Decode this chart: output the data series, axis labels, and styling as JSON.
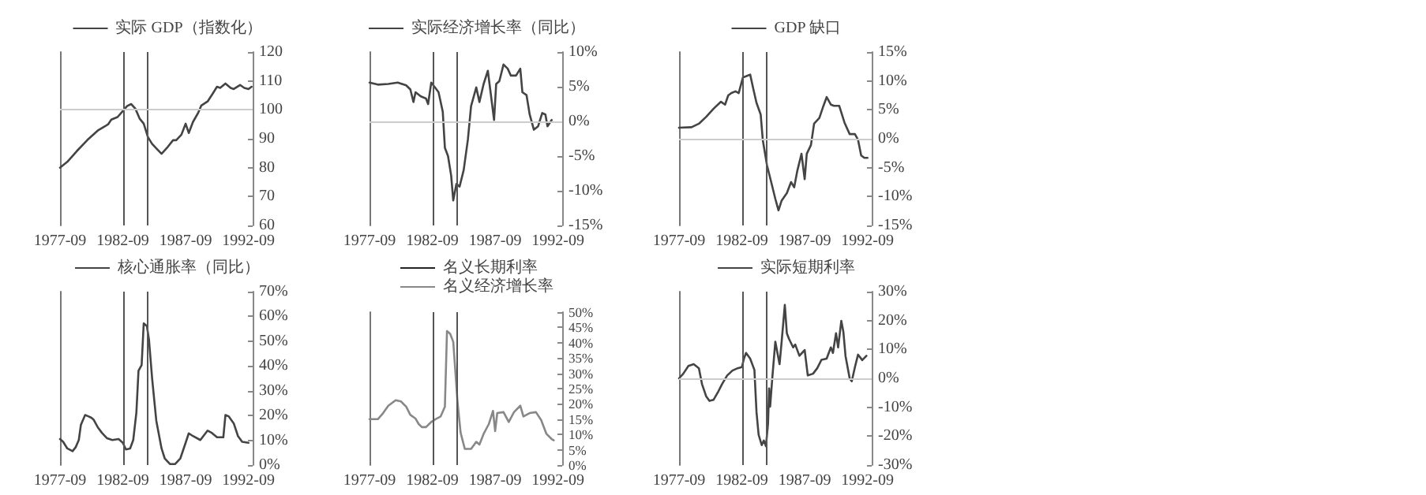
{
  "chart_data": [
    {
      "type": "line",
      "legend": "top",
      "xlim": [
        "1977-09",
        "1993-01"
      ],
      "xticks": [
        "1977-09",
        "1982-09",
        "1987-09",
        "1992-09"
      ],
      "ylim": [
        60,
        120
      ],
      "yticks": [
        60,
        70,
        80,
        90,
        100,
        110,
        120
      ],
      "ref_lines": [
        {
          "axis": "x",
          "value": "1982-09",
          "color": "#555555"
        },
        {
          "axis": "x",
          "value": "1984-09",
          "color": "#555555"
        },
        {
          "axis": "y",
          "value": 100,
          "color": "#cccccc"
        }
      ],
      "series": [
        {
          "name": "实际 GDP（指数化）",
          "color": "#444444",
          "x": [
            "1977-09",
            "1978-04",
            "1979-01",
            "1979-11",
            "1980-09",
            "1981-04",
            "1981-07",
            "1981-10",
            "1982-04",
            "1982-09",
            "1983-01",
            "1983-05",
            "1983-09",
            "1984-01",
            "1984-05",
            "1984-09",
            "1985-01",
            "1985-06",
            "1985-10",
            "1986-04",
            "1986-09",
            "1986-12",
            "1987-05",
            "1987-09",
            "1987-12",
            "1988-04",
            "1988-09",
            "1988-12",
            "1989-06",
            "1989-11",
            "1990-03",
            "1990-06",
            "1990-11",
            "1991-04",
            "1991-07",
            "1992-01",
            "1992-05",
            "1992-09",
            "1992-12"
          ],
          "values": [
            80,
            82,
            85.7,
            89.5,
            92.8,
            94.3,
            95,
            96.6,
            97.5,
            99.6,
            101.3,
            102,
            100.4,
            97,
            95.2,
            90.5,
            88.2,
            86.3,
            84.8,
            87.2,
            89.5,
            89.5,
            91.4,
            95.2,
            92,
            95.8,
            99,
            101.5,
            102.9,
            105.7,
            108,
            107.6,
            109.1,
            107.6,
            107.2,
            108.6,
            107.6,
            107.2,
            108
          ]
        }
      ]
    },
    {
      "type": "line",
      "legend": "top",
      "xlim": [
        "1977-09",
        "1993-01"
      ],
      "xticks": [
        "1977-09",
        "1982-09",
        "1987-09",
        "1992-09"
      ],
      "ylim": [
        -15,
        10
      ],
      "yticks": [
        {
          "value": -15,
          "label": "-15%"
        },
        {
          "value": -10,
          "label": "-10%"
        },
        {
          "value": -5,
          "label": "-5%"
        },
        {
          "value": 0,
          "label": "0%"
        },
        {
          "value": 5,
          "label": "5%"
        },
        {
          "value": 10,
          "label": "10%"
        }
      ],
      "ref_lines": [
        {
          "axis": "x",
          "value": "1982-09",
          "color": "#555555"
        },
        {
          "axis": "x",
          "value": "1984-09",
          "color": "#555555"
        },
        {
          "axis": "y",
          "value": 0,
          "color": "#cccccc"
        }
      ],
      "series": [
        {
          "name": "实际经济增长率（同比）",
          "color": "#444444",
          "x": [
            "1977-09",
            "1978-05",
            "1979-03",
            "1979-12",
            "1980-08",
            "1980-12",
            "1981-03",
            "1981-05",
            "1981-10",
            "1982-03",
            "1982-05",
            "1982-08",
            "1982-11",
            "1983-03",
            "1983-07",
            "1983-09",
            "1983-12",
            "1984-03",
            "1984-05",
            "1984-08",
            "1984-11",
            "1985-03",
            "1985-07",
            "1985-10",
            "1986-03",
            "1986-06",
            "1986-10",
            "1987-02",
            "1987-08",
            "1987-10",
            "1988-01",
            "1988-05",
            "1988-09",
            "1988-12",
            "1989-05",
            "1989-09",
            "1989-11",
            "1990-03",
            "1990-06",
            "1990-10",
            "1991-02",
            "1991-06",
            "1991-09",
            "1991-11",
            "1992-03"
          ],
          "values": [
            5.6,
            5.3,
            5.4,
            5.6,
            5.2,
            4.6,
            2.8,
            4.2,
            3.6,
            3.3,
            2.5,
            5.6,
            5.0,
            4.2,
            1.4,
            -3.8,
            -5,
            -7.8,
            -11.4,
            -9,
            -9.4,
            -7,
            -2.6,
            2.2,
            4.9,
            2.8,
            5.4,
            7.3,
            0.2,
            5.4,
            5.8,
            8.2,
            7.6,
            6.6,
            6.6,
            7.6,
            4.2,
            3.8,
            1.0,
            -1.2,
            -0.7,
            1.2,
            1.0,
            -0.7,
            0.2
          ]
        }
      ]
    },
    {
      "type": "line",
      "legend": "top",
      "xlim": [
        "1977-09",
        "1993-01"
      ],
      "xticks": [
        "1977-09",
        "1982-09",
        "1987-09",
        "1992-09"
      ],
      "ylim": [
        -15,
        15
      ],
      "yticks": [
        {
          "value": -15,
          "label": "-15%"
        },
        {
          "value": -10,
          "label": "-10%"
        },
        {
          "value": -5,
          "label": "-5%"
        },
        {
          "value": 0,
          "label": "0%"
        },
        {
          "value": 5,
          "label": "5%"
        },
        {
          "value": 10,
          "label": "10%"
        },
        {
          "value": 15,
          "label": "15%"
        }
      ],
      "ref_lines": [
        {
          "axis": "x",
          "value": "1982-09",
          "color": "#555555"
        },
        {
          "axis": "x",
          "value": "1984-09",
          "color": "#555555"
        },
        {
          "axis": "y",
          "value": 0,
          "color": "#cccccc"
        }
      ],
      "series": [
        {
          "name": "GDP 缺口",
          "color": "#444444",
          "x": [
            "1977-09",
            "1978-09",
            "1979-04",
            "1979-11",
            "1980-06",
            "1981-01",
            "1981-05",
            "1981-08",
            "1981-11",
            "1982-03",
            "1982-06",
            "1982-10",
            "1983-01",
            "1983-05",
            "1983-08",
            "1983-11",
            "1984-03",
            "1984-05",
            "1984-09",
            "1985-01",
            "1985-05",
            "1985-08",
            "1985-11",
            "1986-04",
            "1986-08",
            "1986-11",
            "1987-02",
            "1987-06",
            "1987-09",
            "1987-11",
            "1988-03",
            "1988-06",
            "1988-11",
            "1989-03",
            "1989-06",
            "1989-10",
            "1990-01",
            "1990-06",
            "1990-11",
            "1991-04",
            "1991-09",
            "1991-12",
            "1992-03",
            "1992-06",
            "1992-09"
          ],
          "values": [
            1.9,
            2.0,
            2.6,
            3.8,
            5.2,
            6.4,
            5.9,
            7.5,
            7.9,
            8.2,
            7.9,
            10.6,
            10.8,
            11.1,
            8.6,
            6.2,
            4.2,
            -0.2,
            -4.6,
            -7.5,
            -10.4,
            -12.4,
            -10.7,
            -9.4,
            -7.5,
            -8.4,
            -5.5,
            -2.6,
            -7.0,
            -2.6,
            -1.1,
            2.6,
            3.6,
            5.7,
            7.2,
            5.9,
            5.7,
            5.7,
            2.8,
            0.8,
            0.8,
            -0.2,
            -2.9,
            -3.3,
            -3.3
          ]
        }
      ]
    },
    {
      "type": "line",
      "legend": "top",
      "xlim": [
        "1977-09",
        "1993-01"
      ],
      "xticks": [
        "1977-09",
        "1982-09",
        "1987-09",
        "1992-09"
      ],
      "ylim": [
        0,
        70
      ],
      "yticks": [
        {
          "value": 0,
          "label": "0%"
        },
        {
          "value": 10,
          "label": "10%"
        },
        {
          "value": 20,
          "label": "20%"
        },
        {
          "value": 30,
          "label": "30%"
        },
        {
          "value": 40,
          "label": "40%"
        },
        {
          "value": 50,
          "label": "50%"
        },
        {
          "value": 60,
          "label": "60%"
        },
        {
          "value": 70,
          "label": "70%"
        }
      ],
      "ref_lines": [
        {
          "axis": "x",
          "value": "1982-09",
          "color": "#555555"
        },
        {
          "axis": "x",
          "value": "1984-09",
          "color": "#555555"
        }
      ],
      "series": [
        {
          "name": "核心通胀率（同比）",
          "color": "#444444",
          "x": [
            "1977-09",
            "1977-12",
            "1978-04",
            "1978-09",
            "1978-12",
            "1979-03",
            "1979-05",
            "1979-09",
            "1979-12",
            "1980-03",
            "1980-05",
            "1980-09",
            "1981-01",
            "1981-06",
            "1981-11",
            "1982-05",
            "1982-09",
            "1982-12",
            "1983-04",
            "1983-07",
            "1983-10",
            "1983-12",
            "1984-03",
            "1984-05",
            "1984-08",
            "1984-10",
            "1985-01",
            "1985-05",
            "1985-10",
            "1986-01",
            "1986-06",
            "1986-11",
            "1987-04",
            "1987-09",
            "1987-12",
            "1988-04",
            "1988-11",
            "1989-06",
            "1989-10",
            "1990-03",
            "1990-09",
            "1990-11",
            "1991-02",
            "1991-07",
            "1991-11",
            "1992-03",
            "1992-09"
          ],
          "values": [
            10.5,
            9.4,
            6.7,
            5.6,
            7.2,
            10.1,
            16.2,
            20.2,
            19.7,
            19.1,
            18.4,
            15.3,
            13.0,
            10.8,
            10.1,
            10.5,
            9.0,
            6.3,
            6.7,
            10.1,
            21.3,
            38.1,
            40.4,
            57.2,
            56.1,
            50.5,
            34.8,
            17.9,
            6.7,
            2.7,
            0.4,
            0.4,
            2.7,
            9.0,
            12.8,
            11.7,
            10.1,
            13.9,
            13.0,
            11.2,
            11.2,
            20.2,
            19.7,
            16.8,
            11.7,
            9.4,
            9.0
          ]
        }
      ]
    },
    {
      "type": "line",
      "legend": "top",
      "xlim": [
        "1977-09",
        "1993-01"
      ],
      "xticks": [
        "1977-09",
        "1982-09",
        "1987-09",
        "1992-09"
      ],
      "ylim": [
        0,
        50
      ],
      "yticks": [
        {
          "value": 0,
          "label": "0%"
        },
        {
          "value": 5,
          "label": "5%"
        },
        {
          "value": 10,
          "label": "10%"
        },
        {
          "value": 15,
          "label": "15%"
        },
        {
          "value": 20,
          "label": "20%"
        },
        {
          "value": 25,
          "label": "25%"
        },
        {
          "value": 30,
          "label": "30%"
        },
        {
          "value": 35,
          "label": "35%"
        },
        {
          "value": 40,
          "label": "40%"
        },
        {
          "value": 45,
          "label": "45%"
        },
        {
          "value": 50,
          "label": "50%"
        }
      ],
      "ref_lines": [
        {
          "axis": "x",
          "value": "1982-09",
          "color": "#555555"
        },
        {
          "axis": "x",
          "value": "1984-09",
          "color": "#555555"
        }
      ],
      "series": [
        {
          "name": "名义长期利率",
          "color": "#222222"
        },
        {
          "name": "名义经济增长率",
          "color": "#888888",
          "x": [
            "1977-09",
            "1978-05",
            "1978-10",
            "1979-03",
            "1979-10",
            "1980-03",
            "1980-08",
            "1980-12",
            "1981-05",
            "1981-08",
            "1981-11",
            "1982-03",
            "1982-08",
            "1982-12",
            "1983-05",
            "1983-09",
            "1983-11",
            "1984-02",
            "1984-05",
            "1984-09",
            "1984-12",
            "1985-04",
            "1985-10",
            "1986-03",
            "1986-06",
            "1986-10",
            "1987-03",
            "1987-07",
            "1987-09",
            "1987-11",
            "1988-05",
            "1988-10",
            "1989-03",
            "1989-09",
            "1989-12",
            "1990-06",
            "1990-12",
            "1991-05",
            "1991-10",
            "1992-03",
            "1992-05"
          ],
          "values": [
            15.0,
            15.0,
            17.0,
            19.4,
            21.2,
            20.8,
            19.1,
            16.4,
            15.2,
            13.4,
            12.4,
            12.4,
            14.1,
            15.0,
            15.9,
            19.1,
            43.8,
            42.9,
            40.3,
            20.8,
            10.6,
            5.3,
            5.3,
            7.6,
            6.7,
            10.2,
            13.4,
            17.7,
            11.1,
            17.0,
            17.3,
            14.1,
            17.3,
            19.4,
            15.9,
            17.0,
            17.3,
            14.7,
            10.2,
            8.5,
            8.1
          ]
        }
      ]
    },
    {
      "type": "line",
      "legend": "top",
      "xlim": [
        "1977-09",
        "1993-01"
      ],
      "xticks": [
        "1977-09",
        "1982-09",
        "1987-09",
        "1992-09"
      ],
      "ylim": [
        -30,
        30
      ],
      "yticks": [
        {
          "value": -30,
          "label": "-30%"
        },
        {
          "value": -20,
          "label": "-20%"
        },
        {
          "value": -10,
          "label": "-10%"
        },
        {
          "value": 0,
          "label": "0%"
        },
        {
          "value": 10,
          "label": "10%"
        },
        {
          "value": 20,
          "label": "20%"
        },
        {
          "value": 30,
          "label": "30%"
        }
      ],
      "ref_lines": [
        {
          "axis": "x",
          "value": "1982-09",
          "color": "#555555"
        },
        {
          "axis": "x",
          "value": "1984-09",
          "color": "#555555"
        },
        {
          "axis": "y",
          "value": 0,
          "color": "#cccccc"
        }
      ],
      "series": [
        {
          "name": "实际短期利率",
          "color": "#444444",
          "x": [
            "1977-09",
            "1978-01",
            "1978-06",
            "1978-11",
            "1979-04",
            "1979-07",
            "1979-11",
            "1980-02",
            "1980-06",
            "1980-10",
            "1981-02",
            "1981-07",
            "1981-12",
            "1982-05",
            "1982-09",
            "1982-11",
            "1983-01",
            "1983-05",
            "1983-09",
            "1983-11",
            "1984-01",
            "1984-04",
            "1984-06",
            "1984-08",
            "1984-10",
            "1984-11",
            "1984-12",
            "1985-02",
            "1985-05",
            "1985-06",
            "1985-09",
            "1985-11",
            "1986-02",
            "1986-04",
            "1986-06",
            "1986-10",
            "1986-12",
            "1987-04",
            "1987-09",
            "1987-12",
            "1988-05",
            "1988-09",
            "1989-01",
            "1989-06",
            "1989-10",
            "1989-12",
            "1990-03",
            "1990-05",
            "1990-08",
            "1990-10",
            "1990-12",
            "1991-04",
            "1991-06",
            "1991-09",
            "1991-12",
            "1992-04",
            "1992-08"
          ],
          "values": [
            0,
            1.6,
            4.3,
            4.9,
            3.5,
            -2.0,
            -6.3,
            -7.8,
            -7.4,
            -4.9,
            -2.0,
            1.0,
            2.7,
            3.5,
            3.9,
            6.8,
            8.8,
            6.8,
            2.9,
            -11.7,
            -19.5,
            -23.1,
            -21.5,
            -23.5,
            -15.6,
            -3.5,
            -9.8,
            0,
            12.7,
            12.7,
            4.9,
            12.7,
            25.4,
            15.6,
            13.7,
            10.7,
            11.7,
            7.8,
            9.8,
            1.0,
            1.6,
            3.5,
            6.4,
            6.8,
            10.7,
            8.8,
            15.6,
            10.7,
            19.9,
            16.0,
            7.8,
            0,
            -1.0,
            3.9,
            8.2,
            6.3,
            7.8
          ]
        }
      ]
    }
  ]
}
